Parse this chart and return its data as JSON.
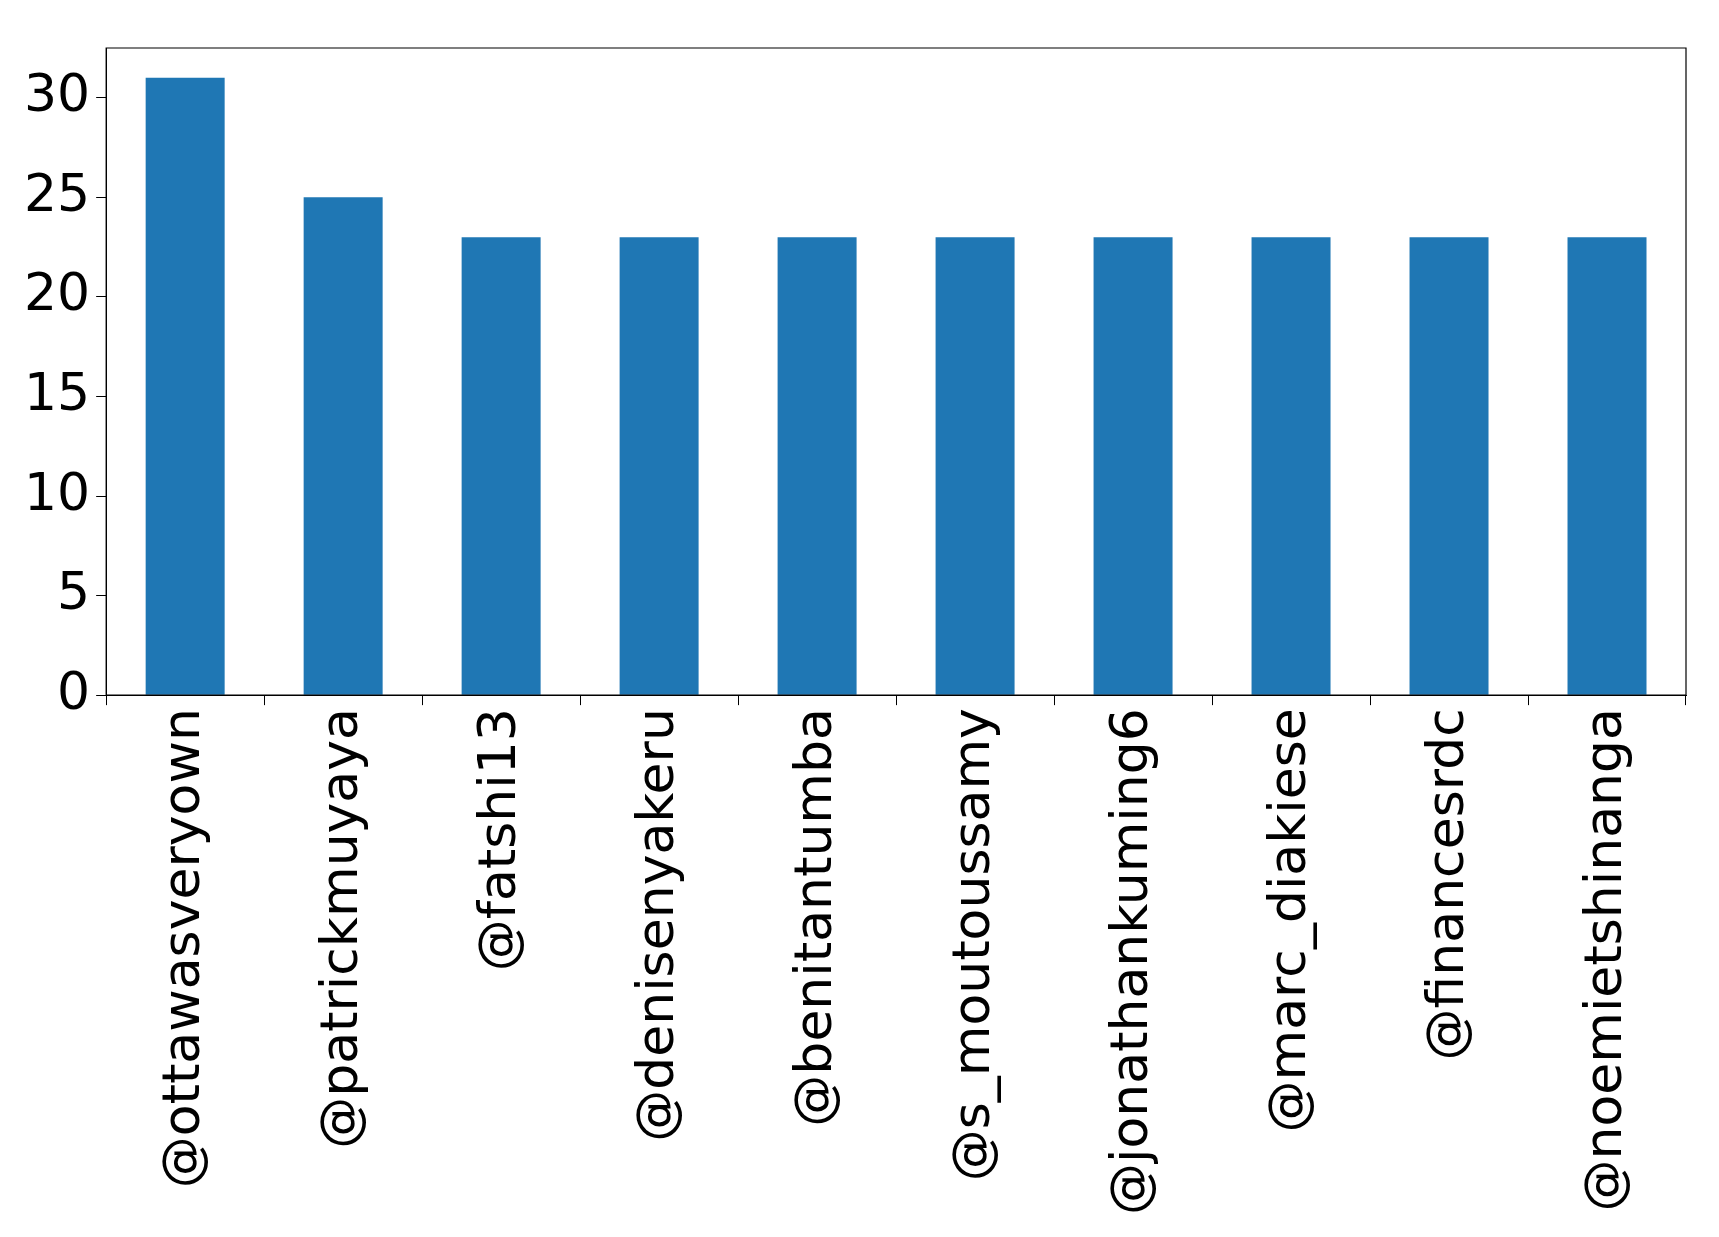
{
  "chart_data": {
    "type": "bar",
    "categories": [
      "@ottawasveryown",
      "@patrickmuyaya",
      "@fatshi13",
      "@denisenyakeru",
      "@benitantumba",
      "@s_moutoussamy",
      "@jonathankuming6",
      "@marc_diakiese",
      "@financesrdc",
      "@noemietshinanga"
    ],
    "values": [
      31,
      25,
      23,
      23,
      23,
      23,
      23,
      23,
      23,
      23
    ],
    "color": "#1f77b4",
    "ylim": [
      0,
      32.5
    ],
    "yticks": [
      0,
      5,
      10,
      15,
      20,
      25,
      30
    ],
    "grid": false,
    "legend": false
  }
}
